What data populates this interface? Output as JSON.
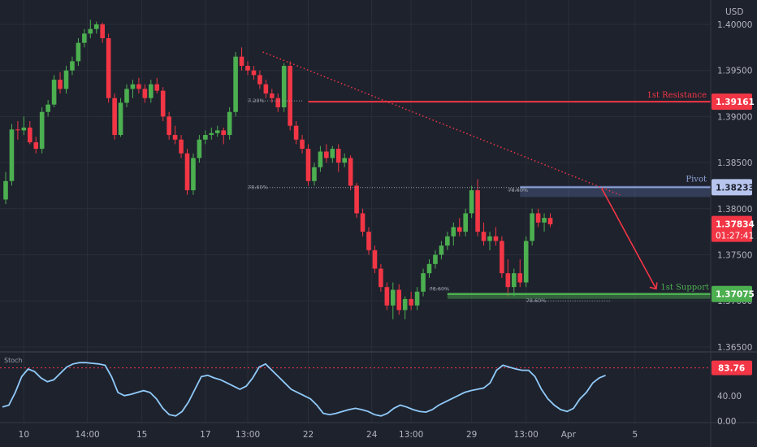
{
  "chart_data": {
    "type": "candlestick",
    "currency": "USD",
    "price_ticks": [
      "1.40000",
      "1.39500",
      "1.39000",
      "1.38500",
      "1.38000",
      "1.37500",
      "1.37000",
      "1.36500"
    ],
    "price_tick_values": [
      1.4,
      1.395,
      1.39,
      1.385,
      1.38,
      1.375,
      1.37,
      1.365
    ],
    "price_range": [
      1.3636,
      1.4025
    ],
    "x_ticks": [
      "10",
      "14:00",
      "15",
      "17",
      "13:00",
      "22",
      "24",
      "13:00",
      "29",
      "13:00",
      "Apr",
      "5"
    ],
    "x_tick_index": [
      3,
      13.5,
      22.5,
      33,
      40,
      50,
      60.5,
      67,
      77,
      86,
      93,
      104
    ],
    "candles": [
      [
        1.381,
        1.384,
        1.3805,
        1.383
      ],
      [
        1.383,
        1.3892,
        1.3825,
        1.3886
      ],
      [
        1.3886,
        1.3895,
        1.3875,
        1.3885
      ],
      [
        1.3885,
        1.39,
        1.388,
        1.3888
      ],
      [
        1.3888,
        1.3895,
        1.387,
        1.3872
      ],
      [
        1.3872,
        1.3878,
        1.386,
        1.3865
      ],
      [
        1.3865,
        1.391,
        1.386,
        1.3905
      ],
      [
        1.3905,
        1.3918,
        1.39,
        1.3913
      ],
      [
        1.3913,
        1.3945,
        1.391,
        1.394
      ],
      [
        1.394,
        1.3948,
        1.3925,
        1.393
      ],
      [
        1.393,
        1.3955,
        1.3925,
        1.395
      ],
      [
        1.395,
        1.3965,
        1.3945,
        1.396
      ],
      [
        1.396,
        1.3985,
        1.3955,
        1.398
      ],
      [
        1.398,
        1.3995,
        1.3975,
        1.399
      ],
      [
        1.399,
        1.4005,
        1.3985,
        1.3995
      ],
      [
        1.3995,
        1.4003,
        1.399,
        1.4
      ],
      [
        1.4,
        1.4002,
        1.398,
        1.3985
      ],
      [
        1.3985,
        1.399,
        1.3915,
        1.392
      ],
      [
        1.392,
        1.3925,
        1.3875,
        1.388
      ],
      [
        1.388,
        1.392,
        1.3878,
        1.3915
      ],
      [
        1.3915,
        1.3935,
        1.391,
        1.393
      ],
      [
        1.393,
        1.394,
        1.392,
        1.3935
      ],
      [
        1.3935,
        1.3942,
        1.3925,
        1.393
      ],
      [
        1.393,
        1.3935,
        1.3915,
        1.392
      ],
      [
        1.392,
        1.394,
        1.3915,
        1.3935
      ],
      [
        1.3935,
        1.3942,
        1.3925,
        1.3928
      ],
      [
        1.3928,
        1.3932,
        1.3895,
        1.39
      ],
      [
        1.39,
        1.3905,
        1.3875,
        1.388
      ],
      [
        1.388,
        1.389,
        1.387,
        1.3875
      ],
      [
        1.3875,
        1.388,
        1.3855,
        1.386
      ],
      [
        1.386,
        1.3865,
        1.3815,
        1.382
      ],
      [
        1.382,
        1.386,
        1.3815,
        1.3855
      ],
      [
        1.3855,
        1.388,
        1.385,
        1.3875
      ],
      [
        1.3875,
        1.3885,
        1.387,
        1.388
      ],
      [
        1.388,
        1.3888,
        1.3875,
        1.3882
      ],
      [
        1.3882,
        1.389,
        1.3878,
        1.3885
      ],
      [
        1.3885,
        1.3888,
        1.387,
        1.388
      ],
      [
        1.388,
        1.391,
        1.3875,
        1.3905
      ],
      [
        1.3905,
        1.397,
        1.39,
        1.3965
      ],
      [
        1.3965,
        1.3975,
        1.395,
        1.3955
      ],
      [
        1.3955,
        1.396,
        1.3945,
        1.395
      ],
      [
        1.395,
        1.3955,
        1.394,
        1.3945
      ],
      [
        1.3945,
        1.395,
        1.393,
        1.3935
      ],
      [
        1.3935,
        1.394,
        1.392,
        1.3925
      ],
      [
        1.3925,
        1.393,
        1.3915,
        1.392
      ],
      [
        1.392,
        1.3925,
        1.3905,
        1.391
      ],
      [
        1.391,
        1.3958,
        1.3905,
        1.3955
      ],
      [
        1.3955,
        1.396,
        1.3885,
        1.389
      ],
      [
        1.389,
        1.3895,
        1.387,
        1.3875
      ],
      [
        1.3875,
        1.388,
        1.386,
        1.3865
      ],
      [
        1.3865,
        1.387,
        1.3825,
        1.383
      ],
      [
        1.383,
        1.385,
        1.3825,
        1.3845
      ],
      [
        1.3845,
        1.3868,
        1.384,
        1.3862
      ],
      [
        1.3862,
        1.387,
        1.385,
        1.3855
      ],
      [
        1.3855,
        1.3868,
        1.385,
        1.3865
      ],
      [
        1.3865,
        1.387,
        1.384,
        1.385
      ],
      [
        1.385,
        1.386,
        1.3845,
        1.3855
      ],
      [
        1.3855,
        1.3858,
        1.382,
        1.3825
      ],
      [
        1.3825,
        1.3828,
        1.379,
        1.3795
      ],
      [
        1.3795,
        1.38,
        1.377,
        1.3775
      ],
      [
        1.3775,
        1.378,
        1.375,
        1.3755
      ],
      [
        1.3755,
        1.376,
        1.373,
        1.3735
      ],
      [
        1.3735,
        1.374,
        1.371,
        1.3715
      ],
      [
        1.3715,
        1.372,
        1.369,
        1.3695
      ],
      [
        1.3695,
        1.372,
        1.368,
        1.3712
      ],
      [
        1.3712,
        1.3718,
        1.3685,
        1.369
      ],
      [
        1.369,
        1.3705,
        1.368,
        1.3702
      ],
      [
        1.3702,
        1.371,
        1.369,
        1.3695
      ],
      [
        1.3695,
        1.3715,
        1.369,
        1.371
      ],
      [
        1.371,
        1.3735,
        1.3705,
        1.373
      ],
      [
        1.373,
        1.3745,
        1.3725,
        1.374
      ],
      [
        1.374,
        1.3755,
        1.3735,
        1.375
      ],
      [
        1.375,
        1.3765,
        1.3745,
        1.376
      ],
      [
        1.376,
        1.3775,
        1.3755,
        1.377
      ],
      [
        1.377,
        1.3785,
        1.376,
        1.378
      ],
      [
        1.378,
        1.379,
        1.377,
        1.3775
      ],
      [
        1.3775,
        1.38,
        1.377,
        1.3795
      ],
      [
        1.3795,
        1.3825,
        1.379,
        1.382
      ],
      [
        1.382,
        1.3832,
        1.377,
        1.3775
      ],
      [
        1.3775,
        1.3785,
        1.376,
        1.3765
      ],
      [
        1.3765,
        1.3775,
        1.3755,
        1.377
      ],
      [
        1.377,
        1.378,
        1.376,
        1.3765
      ],
      [
        1.3765,
        1.377,
        1.3725,
        1.373
      ],
      [
        1.373,
        1.3745,
        1.3705,
        1.3715
      ],
      [
        1.3715,
        1.3735,
        1.3705,
        1.373
      ],
      [
        1.373,
        1.3745,
        1.3715,
        1.372
      ],
      [
        1.372,
        1.377,
        1.3715,
        1.3765
      ],
      [
        1.3765,
        1.38,
        1.376,
        1.3795
      ],
      [
        1.3795,
        1.38,
        1.378,
        1.3785
      ],
      [
        1.3785,
        1.3795,
        1.3775,
        1.379
      ],
      [
        1.379,
        1.3795,
        1.378,
        1.3783
      ]
    ],
    "levels": [
      {
        "name": "1st Resistance",
        "value": 1.39161,
        "tag": "1.39161",
        "color": "#f23645"
      },
      {
        "name": "Pivot",
        "value": 1.38233,
        "tag": "1.38233",
        "color": "#8fa3d9"
      },
      {
        "name": "1st Support",
        "value": 1.37075,
        "tag": "1.37075",
        "color": "#4caf50"
      }
    ],
    "current_price": {
      "value": 1.37834,
      "tag": "1.37834",
      "countdown": "01:27:41",
      "color": "#f23645"
    },
    "fib_labels": [
      "78.60%",
      "78.60%",
      "78.60%",
      "78.60%",
      "78.60%"
    ],
    "fib_labels_top": "7.20%",
    "stoch": {
      "title": "Stoch",
      "ticks": [
        "40.00",
        "0.00"
      ],
      "tick_values": [
        40,
        0
      ],
      "level_tag": "83.76",
      "level_value": 83.76,
      "values": [
        22,
        25,
        45,
        70,
        82,
        78,
        68,
        62,
        65,
        75,
        85,
        90,
        92,
        92,
        91,
        90,
        88,
        70,
        45,
        40,
        42,
        45,
        48,
        45,
        35,
        20,
        10,
        8,
        15,
        30,
        50,
        70,
        72,
        68,
        65,
        60,
        55,
        50,
        55,
        68,
        85,
        90,
        80,
        70,
        60,
        50,
        45,
        40,
        35,
        25,
        12,
        10,
        12,
        15,
        18,
        20,
        18,
        15,
        10,
        8,
        12,
        20,
        25,
        22,
        18,
        15,
        14,
        18,
        25,
        30,
        35,
        40,
        45,
        48,
        50,
        52,
        60,
        80,
        88,
        85,
        82,
        80,
        80,
        70,
        50,
        35,
        25,
        18,
        15,
        20,
        35,
        45,
        60,
        68,
        72
      ]
    }
  }
}
